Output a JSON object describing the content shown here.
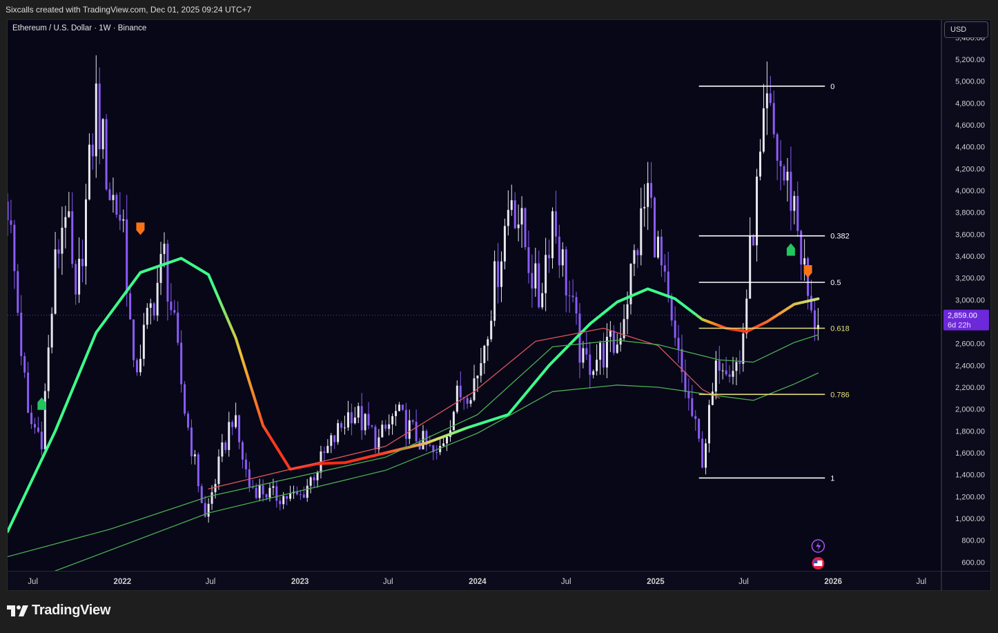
{
  "header": {
    "attribution": "Sixcalls created with TradingView.com, Dec 01, 2025 09:24 UTC+7"
  },
  "symbol_title": "Ethereum / U.S. Dollar · 1W · Binance",
  "currency_button": "USD",
  "footer": {
    "brand": "TradingView"
  },
  "colors": {
    "background": "#070718",
    "up_candle": "#e8e8f0",
    "down_candle": "#8b5cf6",
    "fib_white": "#ffffff",
    "fib_yellow": "#e8e07a",
    "ma_red": "#e05757",
    "ma_green": "#4caf50"
  },
  "chart_data": {
    "type": "candlestick",
    "title": "Ethereum / U.S. Dollar · 1W · Binance",
    "ylim": [
      520,
      5560
    ],
    "y_ticks": [
      600,
      800,
      1000,
      1200,
      1400,
      1600,
      1800,
      2000,
      2200,
      2400,
      2600,
      2800,
      3000,
      3200,
      3400,
      3600,
      3800,
      4000,
      4200,
      4400,
      4600,
      4800,
      5000,
      5200,
      5400
    ],
    "y_tick_labels": [
      "600.00",
      "800.00",
      "1,000.00",
      "1,200.00",
      "1,400.00",
      "1,600.00",
      "1,800.00",
      "2,000.00",
      "2,200.00",
      "2,400.00",
      "2,600.00",
      "2,800.00",
      "3,000.00",
      "3,200.00",
      "3,400.00",
      "3,600.00",
      "3,800.00",
      "4,000.00",
      "4,200.00",
      "4,400.00",
      "4,600.00",
      "4,800.00",
      "5,000.00",
      "5,200.00",
      "5,400.00"
    ],
    "x_range": [
      "2021-05-10",
      "2026-08-10"
    ],
    "x_ticks": [
      {
        "date": "2021-07-01",
        "label": "Jul"
      },
      {
        "date": "2022-01-01",
        "label": "2022"
      },
      {
        "date": "2022-07-01",
        "label": "Jul"
      },
      {
        "date": "2023-01-01",
        "label": "2023"
      },
      {
        "date": "2023-07-01",
        "label": "Jul"
      },
      {
        "date": "2024-01-01",
        "label": "2024"
      },
      {
        "date": "2024-07-01",
        "label": "Jul"
      },
      {
        "date": "2025-01-01",
        "label": "2025"
      },
      {
        "date": "2025-07-01",
        "label": "Jul"
      },
      {
        "date": "2026-01-01",
        "label": "2026"
      },
      {
        "date": "2026-07-01",
        "label": "Jul"
      }
    ],
    "price_path": [
      [
        "2021-05-10",
        3900
      ],
      [
        "2021-06-21",
        1900
      ],
      [
        "2021-07-19",
        1750
      ],
      [
        "2021-08-16",
        3300
      ],
      [
        "2021-09-06",
        3900
      ],
      [
        "2021-09-27",
        2900
      ],
      [
        "2021-11-08",
        4800
      ],
      [
        "2021-12-06",
        4000
      ],
      [
        "2022-01-03",
        3700
      ],
      [
        "2022-01-24",
        2300
      ],
      [
        "2022-03-28",
        3400
      ],
      [
        "2022-05-09",
        2000
      ],
      [
        "2022-06-20",
        1000
      ],
      [
        "2022-08-15",
        1950
      ],
      [
        "2022-09-19",
        1300
      ],
      [
        "2022-11-14",
        1200
      ],
      [
        "2023-01-02",
        1200
      ],
      [
        "2023-04-17",
        2000
      ],
      [
        "2023-06-12",
        1700
      ],
      [
        "2023-07-17",
        1950
      ],
      [
        "2023-10-09",
        1550
      ],
      [
        "2023-11-20",
        2100
      ],
      [
        "2024-01-01",
        2300
      ],
      [
        "2024-03-11",
        4000
      ],
      [
        "2024-05-06",
        3000
      ],
      [
        "2024-06-03",
        3800
      ],
      [
        "2024-08-05",
        2400
      ],
      [
        "2024-10-14",
        2600
      ],
      [
        "2024-12-16",
        4000
      ],
      [
        "2025-02-03",
        2700
      ],
      [
        "2025-04-07",
        1550
      ],
      [
        "2025-05-12",
        2500
      ],
      [
        "2025-06-23",
        2400
      ],
      [
        "2025-07-21",
        3700
      ],
      [
        "2025-08-18",
        4700
      ],
      [
        "2025-09-22",
        4100
      ],
      [
        "2025-10-13",
        3900
      ],
      [
        "2025-11-17",
        2800
      ],
      [
        "2025-12-01",
        2859
      ]
    ],
    "series": [
      {
        "name": "",
        "style": "thick-gradient",
        "points": [
          [
            "2021-05-10",
            880
          ],
          [
            "2021-08-16",
            1800
          ],
          [
            "2021-11-08",
            2700
          ],
          [
            "2022-02-07",
            3250
          ],
          [
            "2022-05-02",
            3380
          ],
          [
            "2022-06-27",
            3230
          ],
          [
            "2022-08-22",
            2650
          ],
          [
            "2022-10-17",
            1850
          ],
          [
            "2022-12-12",
            1450
          ],
          [
            "2023-02-06",
            1500
          ],
          [
            "2023-04-03",
            1510
          ],
          [
            "2023-06-26",
            1600
          ],
          [
            "2023-09-18",
            1690
          ],
          [
            "2023-12-11",
            1830
          ],
          [
            "2024-03-04",
            1950
          ],
          [
            "2024-05-27",
            2400
          ],
          [
            "2024-08-19",
            2780
          ],
          [
            "2024-10-14",
            2980
          ],
          [
            "2024-12-16",
            3100
          ],
          [
            "2025-02-10",
            3010
          ],
          [
            "2025-04-07",
            2820
          ],
          [
            "2025-05-26",
            2740
          ],
          [
            "2025-07-07",
            2710
          ],
          [
            "2025-08-18",
            2800
          ],
          [
            "2025-10-13",
            2960
          ],
          [
            "2025-12-01",
            3010
          ]
        ]
      },
      {
        "name": "",
        "color": "#e05757",
        "points": [
          [
            "2022-06-27",
            1270
          ],
          [
            "2023-06-26",
            1660
          ],
          [
            "2023-12-25",
            2160
          ],
          [
            "2024-04-29",
            2620
          ],
          [
            "2024-09-16",
            2740
          ],
          [
            "2025-01-06",
            2580
          ],
          [
            "2025-04-07",
            2180
          ],
          [
            "2025-05-12",
            2100
          ]
        ]
      },
      {
        "name": "",
        "color": "#4caf50",
        "points": [
          [
            "2021-05-10",
            650
          ],
          [
            "2021-12-06",
            900
          ],
          [
            "2022-06-27",
            1200
          ],
          [
            "2023-06-26",
            1560
          ],
          [
            "2024-01-01",
            1950
          ],
          [
            "2024-06-03",
            2570
          ],
          [
            "2024-10-14",
            2630
          ],
          [
            "2025-01-06",
            2590
          ],
          [
            "2025-05-12",
            2450
          ],
          [
            "2025-07-21",
            2430
          ],
          [
            "2025-10-13",
            2610
          ],
          [
            "2025-12-01",
            2680
          ]
        ]
      },
      {
        "name": "",
        "color": "#4caf50",
        "points": [
          [
            "2021-08-16",
            520
          ],
          [
            "2022-06-27",
            1050
          ],
          [
            "2023-06-26",
            1440
          ],
          [
            "2024-01-01",
            1780
          ],
          [
            "2024-06-03",
            2160
          ],
          [
            "2024-10-14",
            2220
          ],
          [
            "2025-01-06",
            2200
          ],
          [
            "2025-05-12",
            2120
          ],
          [
            "2025-07-21",
            2080
          ],
          [
            "2025-10-13",
            2230
          ],
          [
            "2025-12-01",
            2330
          ]
        ]
      }
    ],
    "fib_levels": [
      {
        "label": "0",
        "price": 4955
      },
      {
        "label": "0.382",
        "price": 3585
      },
      {
        "label": "0.5",
        "price": 3160
      },
      {
        "label": "0.618",
        "price": 2740
      },
      {
        "label": "0.786",
        "price": 2135
      },
      {
        "label": "1",
        "price": 1370
      }
    ],
    "fib_x_range": [
      "2025-03-31",
      "2025-12-15"
    ],
    "signals": [
      {
        "date": "2021-07-19",
        "type": "buy",
        "price": 2050
      },
      {
        "date": "2022-02-07",
        "type": "sell",
        "price": 3650
      },
      {
        "date": "2025-10-06",
        "type": "buy",
        "price": 3460
      },
      {
        "date": "2025-11-10",
        "type": "sell",
        "price": 3260
      }
    ],
    "last_price": {
      "value": 2859,
      "label": "2,859.00",
      "countdown": "6d 22h"
    }
  }
}
